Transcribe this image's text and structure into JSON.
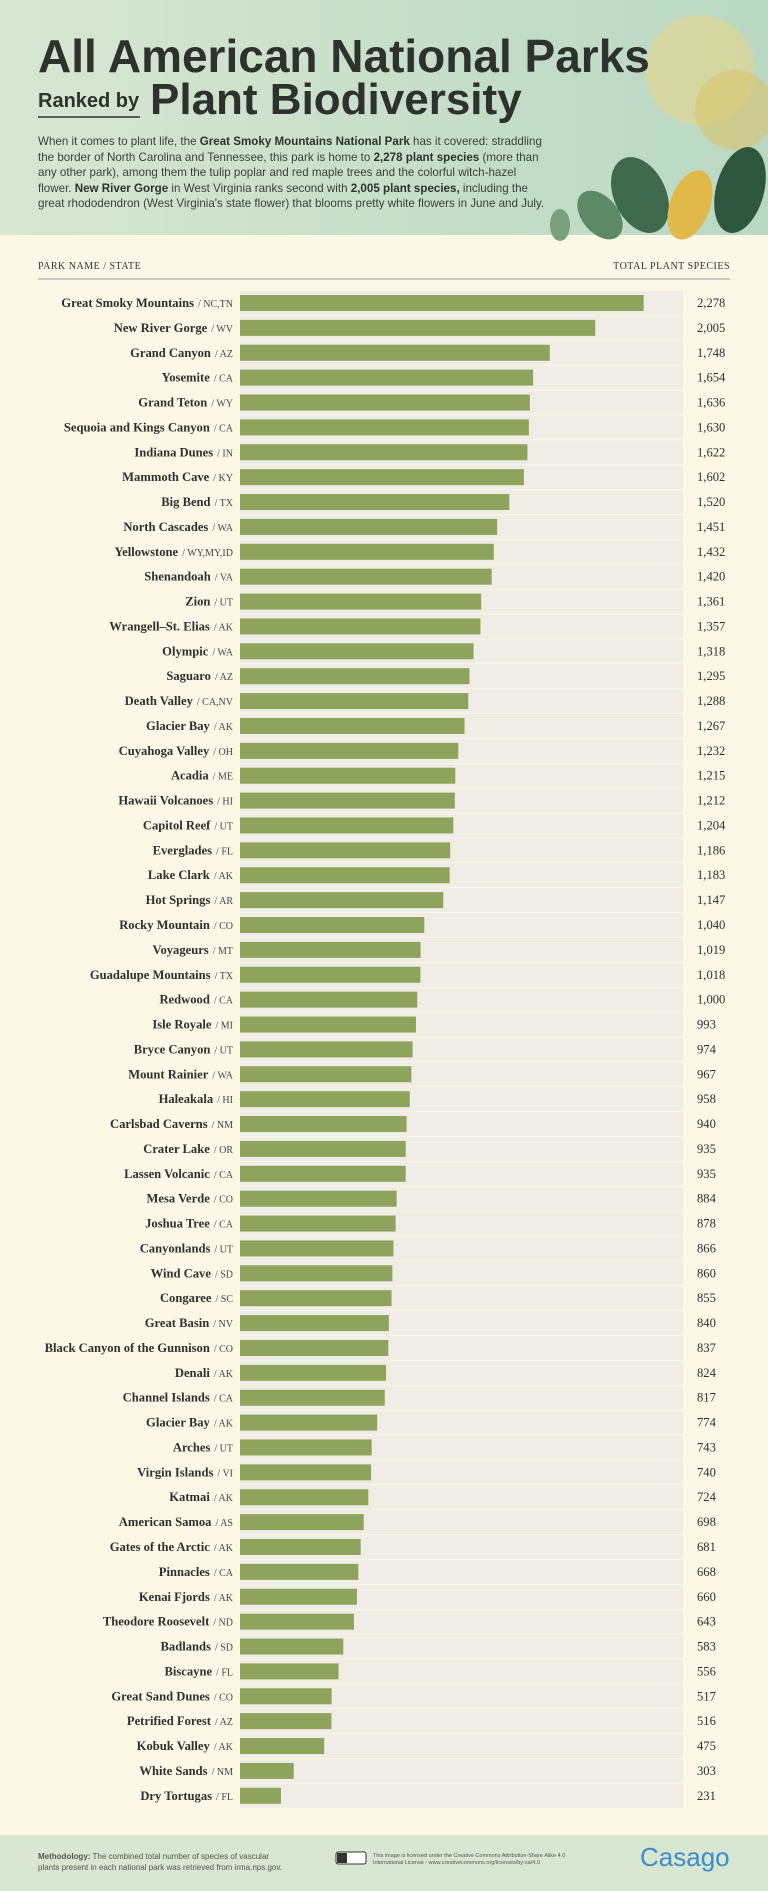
{
  "chart_data": {
    "type": "hbar",
    "title": "All American National Parks",
    "subtitle_prefix": "Ranked by",
    "subtitle": "Plant Biodiversity",
    "intro": [
      {
        "text": "When it comes to plant life, the ",
        "bold": false
      },
      {
        "text": "Great Smoky Mountains National Park",
        "bold": true
      },
      {
        "text": " has it covered: straddling the border of North Carolina and Tennessee, this park is home to ",
        "bold": false
      },
      {
        "text": "2,278 plant species",
        "bold": true
      },
      {
        "text": " (more than any other park), among them the tulip poplar and red maple trees and the colorful witch-hazel flower. ",
        "bold": false
      },
      {
        "text": "New River Gorge",
        "bold": true
      },
      {
        "text": " in West Virginia ranks second with ",
        "bold": false
      },
      {
        "text": "2,005 plant species,",
        "bold": true
      },
      {
        "text": " including the great rhododendron (West Virginia's state flower) that blooms pretty white flowers in June and July.",
        "bold": false
      }
    ],
    "category_header": "PARK NAME / STATE",
    "value_header": "TOTAL PLANT SPECIES",
    "categories": [
      "Great Smoky Mountains",
      "New River Gorge",
      "Grand Canyon",
      "Yosemite",
      "Grand Teton",
      "Sequoia and Kings Canyon",
      "Indiana Dunes",
      "Mammoth Cave",
      "Big Bend",
      "North Cascades",
      "Yellowstone",
      "Shenandoah",
      "Zion",
      "Wrangell–St. Elias",
      "Olympic",
      "Saguaro",
      "Death Valley",
      "Glacier Bay",
      "Cuyahoga Valley",
      "Acadia",
      "Hawaii Volcanoes",
      "Capitol Reef",
      "Everglades",
      "Lake Clark",
      "Hot Springs",
      "Rocky Mountain",
      "Voyageurs",
      "Guadalupe Mountains",
      "Redwood",
      "Isle Royale",
      "Bryce Canyon",
      "Mount Rainier",
      "Haleakala",
      "Carlsbad Caverns",
      "Crater Lake",
      "Lassen Volcanic",
      "Mesa Verde",
      "Joshua Tree",
      "Canyonlands",
      "Wind Cave",
      "Congaree",
      "Great Basin",
      "Black Canyon of the Gunnison",
      "Denali",
      "Channel Islands",
      "Glacier Bay",
      "Arches",
      "Virgin Islands",
      "Katmai",
      "American Samoa",
      "Gates of the Arctic",
      "Pinnacles",
      "Kenai Fjords",
      "Theodore Roosevelt",
      "Badlands",
      "Biscayne",
      "Great Sand Dunes",
      "Petrified Forest",
      "Kobuk Valley",
      "White Sands",
      "Dry Tortugas"
    ],
    "states": [
      "/ NC,TN",
      "/ WV",
      "/ AZ",
      "/ CA",
      "/ WY",
      "/ CA",
      "/ IN",
      "/ KY",
      "/ TX",
      "/ WA",
      "/ WY,MY,ID",
      "/ VA",
      "/ UT",
      "/ AK",
      "/ WA",
      "/ AZ",
      "/ CA,NV",
      "/ AK",
      "/ OH",
      "/ ME",
      "/ HI",
      "/ UT",
      "/ FL",
      "/ AK",
      "/ AR",
      "/ CO",
      "/ MT",
      "/ TX",
      "/ CA",
      "/ MI",
      "/ UT",
      "/ WA",
      "/ HI",
      "/ NM",
      "/ OR",
      "/ CA",
      "/ CO",
      "/ CA",
      "/ UT",
      "/ SD",
      "/ SC",
      "/ NV",
      "/ CO",
      "/ AK",
      "/ CA",
      "/ AK",
      "/ UT",
      "/ VI",
      "/ AK",
      "/ AS",
      "/ AK",
      "/ CA",
      "/ AK",
      "/ ND",
      "/ SD",
      "/ FL",
      "/ CO",
      "/ AZ",
      "/ AK",
      "/ NM",
      "/ FL"
    ],
    "values": [
      2278,
      2005,
      1748,
      1654,
      1636,
      1630,
      1622,
      1602,
      1520,
      1451,
      1432,
      1420,
      1361,
      1357,
      1318,
      1295,
      1288,
      1267,
      1232,
      1215,
      1212,
      1204,
      1186,
      1183,
      1147,
      1040,
      1019,
      1018,
      1000,
      993,
      974,
      967,
      958,
      940,
      935,
      935,
      884,
      878,
      866,
      860,
      855,
      840,
      837,
      824,
      817,
      774,
      743,
      740,
      724,
      698,
      681,
      668,
      660,
      643,
      583,
      556,
      517,
      516,
      475,
      303,
      231
    ],
    "value_labels": [
      "2,278",
      "2,005",
      "1,748",
      "1,654",
      "1,636",
      "1,630",
      "1,622",
      "1,602",
      "1,520",
      "1,451",
      "1,432",
      "1,420",
      "1,361",
      "1,357",
      "1,318",
      "1,295",
      "1,288",
      "1,267",
      "1,232",
      "1,215",
      "1,212",
      "1,204",
      "1,186",
      "1,183",
      "1,147",
      "1,040",
      "1,019",
      "1,018",
      "1,000",
      "993",
      "974",
      "967",
      "958",
      "940",
      "935",
      "935",
      "884",
      "878",
      "866",
      "860",
      "855",
      "840",
      "837",
      "824",
      "817",
      "774",
      "743",
      "740",
      "724",
      "698",
      "681",
      "668",
      "660",
      "643",
      "583",
      "556",
      "517",
      "516",
      "475",
      "303",
      "231"
    ],
    "color": "#8ea35c",
    "xlim": [
      0,
      2500
    ],
    "methodology_label": "Methodology:",
    "methodology": "The combined total number of species of vascular plants present in each national park was retrieved from irma.nps.gov.",
    "license": "This image is licensed under the Creative Commons Attribution-Share Alike 4.0 International License - www.creativecommons.org/licenses/by-sa/4.0",
    "brand": "Casago"
  }
}
